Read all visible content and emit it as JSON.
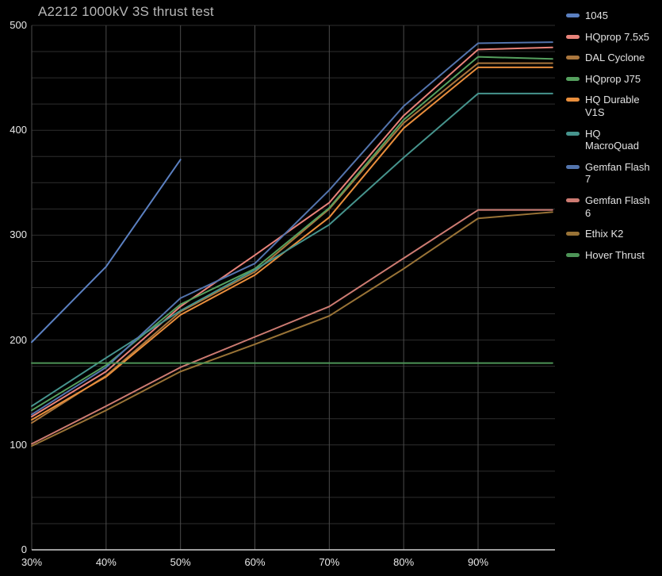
{
  "chart_data": {
    "type": "line",
    "title": "A2212 1000kV 3S thrust test",
    "xlabel": "",
    "ylabel": "",
    "x": [
      30,
      40,
      50,
      60,
      70,
      80,
      90,
      100
    ],
    "x_tick_labels": [
      "30%",
      "40%",
      "50%",
      "60%",
      "70%",
      "80%",
      "90%"
    ],
    "x_tick_values": [
      30,
      40,
      50,
      60,
      70,
      80,
      90
    ],
    "y_tick_labels": [
      "0",
      "100",
      "200",
      "300",
      "400",
      "500"
    ],
    "y_tick_values": [
      0,
      100,
      200,
      300,
      400,
      500
    ],
    "ylim": [
      0,
      500
    ],
    "xlim": [
      30,
      100
    ],
    "grid": {
      "horizontal_minor_step": 25,
      "vertical_step": 10,
      "visible": true
    },
    "legend_position": "right",
    "background_color": "#000000",
    "series": [
      {
        "name": "1045",
        "color": "#5b80c1",
        "values": [
          198,
          270,
          372,
          null,
          null,
          null,
          null,
          null
        ]
      },
      {
        "name": "HQprop 7.5x5",
        "color": "#e8837a",
        "values": [
          127,
          170,
          232,
          281,
          331,
          414,
          477,
          479
        ]
      },
      {
        "name": "DAL Cyclone",
        "color": "#aa763d",
        "values": [
          121,
          166,
          227,
          265,
          325,
          407,
          464,
          464
        ]
      },
      {
        "name": "HQprop J75",
        "color": "#55a05e",
        "values": [
          133,
          176,
          234,
          268,
          326,
          410,
          470,
          468
        ]
      },
      {
        "name": "HQ Durable V1S",
        "color": "#e98e3c",
        "label_lines": [
          "HQ Durable",
          "V1S"
        ],
        "values": [
          124,
          165,
          224,
          262,
          317,
          402,
          460,
          460
        ]
      },
      {
        "name": "HQ MacroQuad",
        "color": "#46948d",
        "label_lines": [
          "HQ",
          "MacroQuad"
        ],
        "values": [
          137,
          183,
          228,
          267,
          310,
          374,
          435,
          435
        ]
      },
      {
        "name": "Gemfan Flash 7",
        "color": "#5374ad",
        "label_lines": [
          "Gemfan Flash",
          "7"
        ],
        "values": [
          129,
          174,
          240,
          273,
          343,
          423,
          483,
          484
        ]
      },
      {
        "name": "Gemfan Flash 6",
        "color": "#cd7b72",
        "label_lines": [
          "Gemfan Flash",
          "6"
        ],
        "values": [
          101,
          137,
          174,
          203,
          232,
          278,
          324,
          324
        ]
      },
      {
        "name": "Ethix K2",
        "color": "#997336",
        "values": [
          99,
          133,
          170,
          196,
          223,
          268,
          316,
          322
        ]
      },
      {
        "name": "Hover Thrust",
        "color": "#4d9457",
        "values": [
          178,
          178,
          178,
          178,
          178,
          178,
          178,
          178
        ]
      }
    ]
  }
}
